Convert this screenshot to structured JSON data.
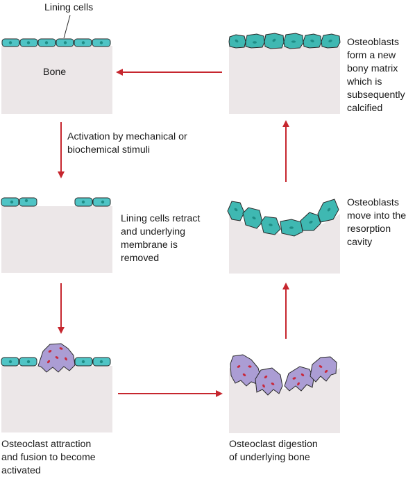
{
  "labels": {
    "lining_cells": "Lining cells",
    "bone": "Bone",
    "activation": [
      "Activation by mechanical or",
      "biochemical stimuli"
    ],
    "retract": [
      "Lining cells retract",
      "and underlying",
      "membrane is",
      "removed"
    ],
    "attraction": [
      "Osteoclast attraction",
      "and fusion to become",
      "activated"
    ],
    "digestion": [
      "Osteoclast digestion",
      "of underlying bone"
    ],
    "move": [
      "Osteoblasts",
      "move into the",
      "resorption",
      "cavity"
    ],
    "matrix": [
      "Osteoblasts",
      "form a new",
      "bony matrix",
      "which is",
      "subsequently",
      "calcified"
    ]
  },
  "colors": {
    "bone": "#ece7e8",
    "lining_cell": "#4fc4c5",
    "osteoblast": "#3fb8b2",
    "nucleus": "#1f8c85",
    "osteoclast": "#ab9dd4",
    "osteoclast_nucleus": "#c8283c",
    "arrow": "#c6262e",
    "outline": "#2a2a2a"
  }
}
